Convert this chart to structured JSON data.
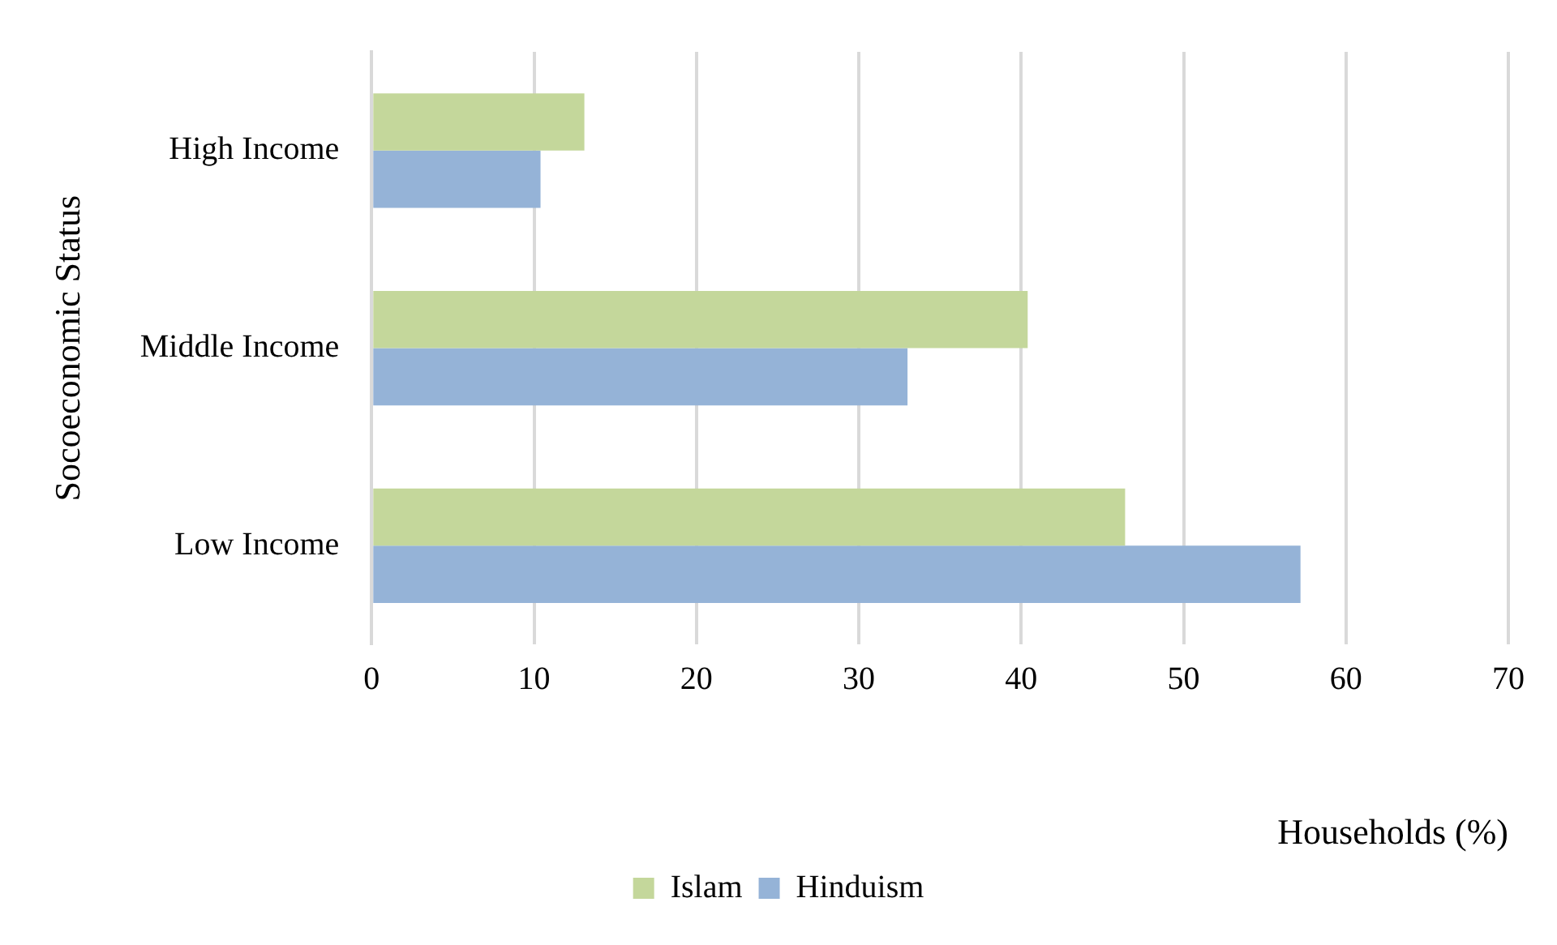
{
  "chart_data": {
    "type": "bar",
    "orientation": "horizontal",
    "xlabel": "Households (%)",
    "ylabel": "Socoeconomic Status",
    "categories": [
      "High Income",
      "Middle Income",
      "Low Income"
    ],
    "series": [
      {
        "name": "Islam",
        "color": "#c4d79b",
        "values": [
          13.1,
          40.4,
          46.4
        ]
      },
      {
        "name": "Hinduism",
        "color": "#95b3d7",
        "values": [
          10.4,
          33.0,
          57.2
        ]
      }
    ],
    "xlim": [
      0,
      70
    ],
    "xticks": [
      0,
      10,
      20,
      30,
      40,
      50,
      60,
      70
    ],
    "grid": "x",
    "legend": "bottom"
  }
}
